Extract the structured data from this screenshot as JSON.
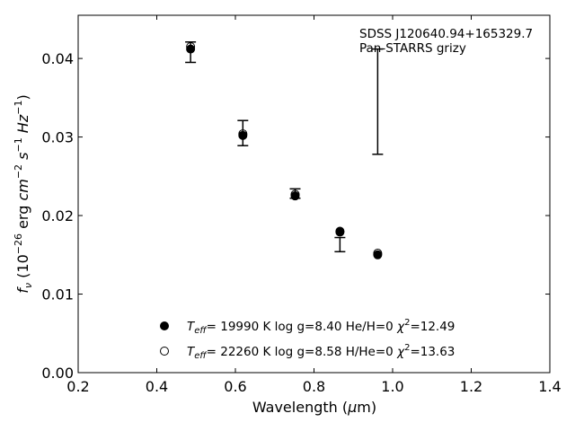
{
  "chart_data": {
    "type": "scatter",
    "title": "",
    "annotation_lines": [
      "SDSS J120640.94+165329.7",
      "Pan-STARRS grizy"
    ],
    "xlabel": "Wavelength (μm)",
    "ylabel": "fν (10⁻²⁶ erg cm⁻² s⁻¹ Hz⁻¹)",
    "xlim": [
      0.2,
      1.4
    ],
    "ylim": [
      0.0,
      0.0455
    ],
    "xticks": [
      0.2,
      0.4,
      0.6,
      0.8,
      1.0,
      1.2,
      1.4
    ],
    "xtick_labels": [
      "0.2",
      "0.4",
      "0.6",
      "0.8",
      "1.0",
      "1.2",
      "1.4"
    ],
    "yticks": [
      0.0,
      0.01,
      0.02,
      0.03,
      0.04
    ],
    "ytick_labels": [
      "0.00",
      "0.01",
      "0.02",
      "0.03",
      "0.04"
    ],
    "grid": false,
    "legend_position": "lower-center",
    "observed": {
      "x": [
        0.486,
        0.619,
        0.752,
        0.866,
        0.962
      ],
      "y": [
        0.0408,
        0.0305,
        0.0228,
        0.0163,
        0.0345
      ],
      "yerr": [
        0.0013,
        0.0016,
        0.0006,
        0.0009,
        0.0067
      ]
    },
    "series": [
      {
        "name": "Teff= 19990 K  log g=8.40  He/H=0  χ²=12.49",
        "legend_parts": {
          "t": "T",
          "sub": "eff",
          "rest": "= 19990 K  log g=8.40  He/H=0  ",
          "chi": "χ",
          "sup": "2",
          "val": "=12.49"
        },
        "marker": "filled-circle",
        "color": "#000000",
        "x": [
          0.486,
          0.619,
          0.752,
          0.866,
          0.962
        ],
        "y": [
          0.0412,
          0.0302,
          0.0225,
          0.0179,
          0.015
        ]
      },
      {
        "name": "Teff= 22260 K  log g=8.58  H/He=0  χ²=13.63",
        "legend_parts": {
          "t": "T",
          "sub": "eff",
          "rest": "= 22260 K  log g=8.58  H/He=0  ",
          "chi": "χ",
          "sup": "2",
          "val": "=13.63"
        },
        "marker": "open-circle",
        "color": "#000000",
        "x": [
          0.486,
          0.619,
          0.752,
          0.866,
          0.962
        ],
        "y": [
          0.0415,
          0.0304,
          0.0227,
          0.018,
          0.0152
        ]
      }
    ]
  }
}
